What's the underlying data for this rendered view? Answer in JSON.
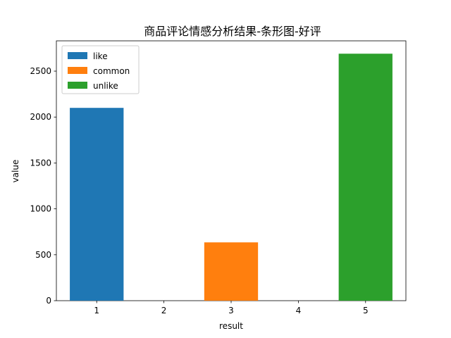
{
  "chart_data": {
    "type": "bar",
    "title": "商品评论情感分析结果-条形图-好评",
    "xlabel": "result",
    "ylabel": "value",
    "x_ticks": [
      "1",
      "2",
      "3",
      "4",
      "5"
    ],
    "xlim": [
      0.4,
      5.6
    ],
    "ylim": [
      0,
      2830
    ],
    "y_ticks": [
      0,
      500,
      1000,
      1500,
      2000,
      2500
    ],
    "legend_position": "top-left",
    "series": [
      {
        "name": "like",
        "color": "#1f77b4",
        "x": [
          1
        ],
        "values": [
          2100
        ]
      },
      {
        "name": "common",
        "color": "#ff7f0e",
        "x": [
          3
        ],
        "values": [
          635
        ]
      },
      {
        "name": "unlike",
        "color": "#2ca02c",
        "x": [
          5
        ],
        "values": [
          2690
        ]
      }
    ],
    "bar_width": 0.8
  }
}
